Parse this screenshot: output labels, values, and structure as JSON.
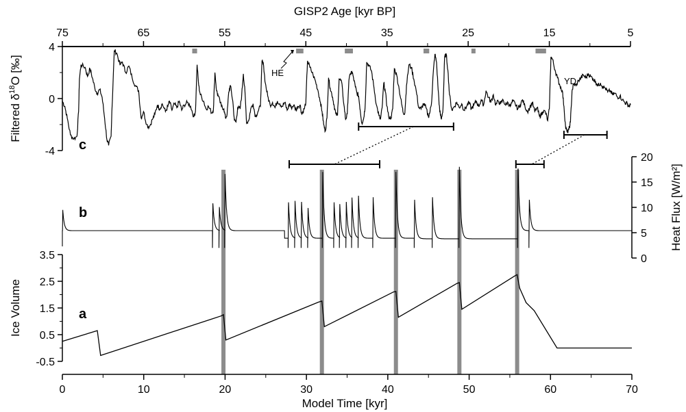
{
  "chart_data": [
    {
      "panel": "c",
      "type": "line",
      "xlabel": "GISP2 Age [kyr BP]",
      "ylabel_prefix": "Filtered δ",
      "ylabel_sup": "18",
      "ylabel_suffix": "O [‰]",
      "x_ticks": [
        "75",
        "65",
        "55",
        "45",
        "35",
        "25",
        "15",
        "5"
      ],
      "y_ticks": [
        "4",
        "0",
        "-4"
      ],
      "xlim": [
        75,
        5
      ],
      "ylim": [
        -4,
        4
      ],
      "annotations": [
        "HE",
        "YD"
      ],
      "heinrich_events_kyr_bp": [
        [
          59.0,
          58.4
        ],
        [
          46.2,
          45.3
        ],
        [
          40.2,
          39.2
        ],
        [
          30.5,
          29.8
        ],
        [
          24.6,
          24.1
        ],
        [
          16.7,
          15.4
        ]
      ],
      "windows_kyr_bp": [
        [
          38.5,
          26.8
        ],
        [
          13.2,
          7.9
        ]
      ],
      "points": [
        [
          75,
          -0.2
        ],
        [
          74.7,
          -0.6
        ],
        [
          74.4,
          -1.5
        ],
        [
          74.0,
          -2.8
        ],
        [
          73.6,
          -3.1
        ],
        [
          73.2,
          -2.9
        ],
        [
          73.0,
          -1.0
        ],
        [
          72.9,
          1.5
        ],
        [
          72.7,
          2.6
        ],
        [
          72.2,
          2.4
        ],
        [
          71.9,
          1.7
        ],
        [
          71.6,
          2.3
        ],
        [
          71.3,
          1.6
        ],
        [
          71.0,
          0.8
        ],
        [
          70.7,
          0.4
        ],
        [
          70.4,
          0.7
        ],
        [
          70.1,
          0.1
        ],
        [
          69.8,
          -1.5
        ],
        [
          69.5,
          -3.2
        ],
        [
          69.3,
          -3.6
        ],
        [
          69.0,
          -2.9
        ],
        [
          68.9,
          -1.0
        ],
        [
          68.6,
          3.7
        ],
        [
          68.3,
          3.5
        ],
        [
          67.9,
          2.6
        ],
        [
          67.6,
          2.8
        ],
        [
          67.2,
          2.0
        ],
        [
          66.8,
          2.5
        ],
        [
          66.4,
          1.6
        ],
        [
          66.0,
          1.0
        ],
        [
          65.6,
          0.6
        ],
        [
          65.3,
          -1.5
        ],
        [
          65.0,
          -1.0
        ],
        [
          64.6,
          -2.0
        ],
        [
          64.3,
          -2.2
        ],
        [
          63.9,
          -1.6
        ],
        [
          63.6,
          -1.2
        ],
        [
          63.3,
          -0.5
        ],
        [
          63.0,
          -0.8
        ],
        [
          62.7,
          -0.4
        ],
        [
          62.3,
          -1.0
        ],
        [
          62.0,
          -0.6
        ],
        [
          61.8,
          -0.2
        ],
        [
          61.5,
          -0.9
        ],
        [
          61.2,
          -0.4
        ],
        [
          60.9,
          -0.7
        ],
        [
          60.6,
          -0.2
        ],
        [
          60.3,
          -0.9
        ],
        [
          60.0,
          -0.5
        ],
        [
          59.6,
          -0.3
        ],
        [
          59.2,
          -0.6
        ],
        [
          58.8,
          -1.4
        ],
        [
          58.6,
          -1.0
        ],
        [
          58.4,
          2.6
        ],
        [
          58.2,
          1.0
        ],
        [
          58.0,
          0.3
        ],
        [
          57.6,
          -0.2
        ],
        [
          57.3,
          -0.8
        ],
        [
          57.0,
          -0.6
        ],
        [
          56.6,
          -1.1
        ],
        [
          56.4,
          -0.9
        ],
        [
          56.2,
          2.0
        ],
        [
          56.0,
          0.6
        ],
        [
          55.8,
          0.2
        ],
        [
          55.4,
          -0.6
        ],
        [
          55.1,
          -0.8
        ],
        [
          54.9,
          -1.5
        ],
        [
          54.7,
          -1.2
        ],
        [
          54.5,
          0.5
        ],
        [
          54.3,
          1.0
        ],
        [
          54.0,
          -0.2
        ],
        [
          53.8,
          -1.7
        ],
        [
          53.6,
          -1.8
        ],
        [
          53.4,
          -0.7
        ],
        [
          53.1,
          -0.8
        ],
        [
          52.9,
          0.3
        ],
        [
          52.7,
          1.9
        ],
        [
          52.5,
          0.5
        ],
        [
          52.3,
          -1.9
        ],
        [
          52.0,
          -1.6
        ],
        [
          51.8,
          -0.8
        ],
        [
          51.5,
          -0.4
        ],
        [
          51.2,
          -1.4
        ],
        [
          50.9,
          -1.0
        ],
        [
          50.6,
          -0.6
        ],
        [
          50.4,
          2.9
        ],
        [
          50.2,
          2.5
        ],
        [
          50.0,
          1.2
        ],
        [
          49.7,
          0.2
        ],
        [
          49.4,
          -0.5
        ],
        [
          49.1,
          -0.3
        ],
        [
          48.8,
          -0.7
        ],
        [
          48.5,
          -0.2
        ],
        [
          48.2,
          -0.4
        ],
        [
          47.9,
          -0.6
        ],
        [
          47.6,
          -0.3
        ],
        [
          47.3,
          -0.9
        ],
        [
          47.0,
          -0.4
        ],
        [
          46.8,
          -0.7
        ],
        [
          46.5,
          -0.5
        ],
        [
          46.2,
          -0.9
        ],
        [
          46.0,
          -0.6
        ],
        [
          45.7,
          -0.5
        ],
        [
          45.5,
          -1.2
        ],
        [
          45.2,
          -0.8
        ],
        [
          45.0,
          -0.3
        ],
        [
          44.8,
          2.9
        ],
        [
          44.5,
          2.4
        ],
        [
          44.1,
          1.8
        ],
        [
          43.8,
          1.3
        ],
        [
          43.5,
          0.6
        ],
        [
          43.2,
          -0.3
        ],
        [
          43.0,
          -1.0
        ],
        [
          42.8,
          -2.0
        ],
        [
          42.6,
          -2.5
        ],
        [
          42.4,
          -1.5
        ],
        [
          42.2,
          1.6
        ],
        [
          42.0,
          0.8
        ],
        [
          41.7,
          0.1
        ],
        [
          41.5,
          -0.6
        ],
        [
          41.3,
          -1.2
        ],
        [
          41.1,
          -1.3
        ],
        [
          40.9,
          1.5
        ],
        [
          40.6,
          1.3
        ],
        [
          40.3,
          -0.5
        ],
        [
          40.1,
          -1.6
        ],
        [
          39.9,
          -1.2
        ],
        [
          39.7,
          1.4
        ],
        [
          39.4,
          2.1
        ],
        [
          39.2,
          1.8
        ],
        [
          38.9,
          0.9
        ],
        [
          38.7,
          0.4
        ],
        [
          38.5,
          0.2
        ],
        [
          38.3,
          -0.9
        ],
        [
          38.1,
          -1.9
        ],
        [
          37.9,
          -1.6
        ],
        [
          37.7,
          -0.7
        ],
        [
          37.5,
          2.8
        ],
        [
          37.2,
          2.5
        ],
        [
          36.9,
          2.1
        ],
        [
          36.6,
          0.8
        ],
        [
          36.3,
          -0.5
        ],
        [
          36.0,
          -1.3
        ],
        [
          35.8,
          -1.6
        ],
        [
          35.6,
          -0.7
        ],
        [
          35.4,
          1.2
        ],
        [
          35.2,
          0.5
        ],
        [
          35.0,
          -0.6
        ],
        [
          34.8,
          -1.4
        ],
        [
          34.5,
          -1.5
        ],
        [
          34.3,
          -0.8
        ],
        [
          34.1,
          2.3
        ],
        [
          33.8,
          1.8
        ],
        [
          33.5,
          0.7
        ],
        [
          33.2,
          -0.4
        ],
        [
          33.0,
          -1.1
        ],
        [
          32.8,
          -1.1
        ],
        [
          32.6,
          1.0
        ],
        [
          32.3,
          2.6
        ],
        [
          32.0,
          2.4
        ],
        [
          31.7,
          1.5
        ],
        [
          31.4,
          0.6
        ],
        [
          31.1,
          -0.7
        ],
        [
          30.8,
          -0.8
        ],
        [
          30.5,
          -0.4
        ],
        [
          30.2,
          -0.7
        ],
        [
          29.9,
          -1.4
        ],
        [
          29.7,
          -1.0
        ],
        [
          29.5,
          -0.2
        ],
        [
          29.3,
          2.0
        ],
        [
          29.1,
          3.4
        ],
        [
          28.9,
          2.8
        ],
        [
          28.7,
          0.7
        ],
        [
          28.5,
          -1.0
        ],
        [
          28.3,
          -1.6
        ],
        [
          28.1,
          -0.8
        ],
        [
          27.9,
          3.2
        ],
        [
          27.7,
          3.4
        ],
        [
          27.5,
          2.2
        ],
        [
          27.3,
          0.3
        ],
        [
          27.0,
          -0.9
        ],
        [
          26.7,
          -0.6
        ],
        [
          26.4,
          -0.3
        ],
        [
          26.1,
          -0.7
        ],
        [
          25.8,
          -0.4
        ],
        [
          25.5,
          -0.9
        ],
        [
          25.2,
          -0.6
        ],
        [
          24.9,
          -0.3
        ],
        [
          24.6,
          -0.8
        ],
        [
          24.3,
          -0.5
        ],
        [
          24.0,
          -0.2
        ],
        [
          23.7,
          -0.6
        ],
        [
          23.4,
          -0.1
        ],
        [
          23.1,
          -0.5
        ],
        [
          22.8,
          0.6
        ],
        [
          22.5,
          0.1
        ],
        [
          22.2,
          -0.3
        ],
        [
          21.9,
          0.3
        ],
        [
          21.6,
          -0.5
        ],
        [
          21.3,
          -0.2
        ],
        [
          21.0,
          -0.4
        ],
        [
          20.7,
          -0.1
        ],
        [
          20.4,
          -0.5
        ],
        [
          20.1,
          -0.3
        ],
        [
          19.8,
          -0.6
        ],
        [
          19.5,
          -0.2
        ],
        [
          19.2,
          -0.4
        ],
        [
          18.9,
          -0.8
        ],
        [
          18.6,
          -0.5
        ],
        [
          18.3,
          -0.1
        ],
        [
          18.0,
          -0.6
        ],
        [
          17.7,
          -1.0
        ],
        [
          17.4,
          -0.7
        ],
        [
          17.1,
          -0.3
        ],
        [
          16.8,
          -1.0
        ],
        [
          16.5,
          -0.7
        ],
        [
          16.2,
          -1.4
        ],
        [
          16.0,
          -1.2
        ],
        [
          15.8,
          -1.0
        ],
        [
          15.5,
          -1.0
        ],
        [
          15.2,
          -1.7
        ],
        [
          15.0,
          -0.8
        ],
        [
          14.8,
          3.2
        ],
        [
          14.6,
          3.0
        ],
        [
          14.3,
          2.2
        ],
        [
          14.0,
          1.6
        ],
        [
          13.7,
          1.0
        ],
        [
          13.4,
          0.6
        ],
        [
          13.2,
          -0.6
        ],
        [
          13.0,
          -2.2
        ],
        [
          12.8,
          -2.6
        ],
        [
          12.6,
          -2.4
        ],
        [
          12.4,
          -1.8
        ],
        [
          12.2,
          0.6
        ],
        [
          12.0,
          1.1
        ],
        [
          11.7,
          1.0
        ],
        [
          11.4,
          1.4
        ],
        [
          11.1,
          1.6
        ],
        [
          10.8,
          1.8
        ],
        [
          10.5,
          1.6
        ],
        [
          10.2,
          1.9
        ],
        [
          9.9,
          1.7
        ],
        [
          9.6,
          1.5
        ],
        [
          9.3,
          1.3
        ],
        [
          9.0,
          1.0
        ],
        [
          8.7,
          1.2
        ],
        [
          8.4,
          0.9
        ],
        [
          8.1,
          0.8
        ],
        [
          7.8,
          0.5
        ],
        [
          7.5,
          0.6
        ],
        [
          7.2,
          0.3
        ],
        [
          6.9,
          0.4
        ],
        [
          6.6,
          0.1
        ],
        [
          6.3,
          0.2
        ],
        [
          6.0,
          -0.1
        ],
        [
          5.7,
          -0.3
        ],
        [
          5.4,
          -0.4
        ],
        [
          5.2,
          -0.6
        ],
        [
          5.0,
          -0.5
        ]
      ]
    },
    {
      "panel": "b",
      "type": "line",
      "ylabel": "Heat Flux [W/m²]",
      "y_ticks": [
        "20",
        "15",
        "10",
        "5",
        "0"
      ],
      "ylim": [
        0,
        20
      ],
      "xlim": [
        0,
        70
      ],
      "base_levels": [
        {
          "x": [
            0,
            18.0
          ],
          "y": 5.4
        },
        {
          "x": [
            18.0,
            27.3
          ],
          "y": 5.4
        },
        {
          "x": [
            27.3,
            43.3
          ],
          "y": 3.9
        },
        {
          "x": [
            43.3,
            56.0
          ],
          "y": 3.8
        },
        {
          "x": [
            56.0,
            70.0
          ],
          "y": 5.4
        }
      ],
      "spikes": [
        {
          "x": 0.05,
          "peak": 9.5
        },
        {
          "x": 18.5,
          "peak": 10.8
        },
        {
          "x": 19.3,
          "peak": 10.0
        },
        {
          "x": 20.0,
          "peak": 16.5
        },
        {
          "x": 27.8,
          "peak": 11.0
        },
        {
          "x": 28.6,
          "peak": 11.2
        },
        {
          "x": 29.4,
          "peak": 11.0
        },
        {
          "x": 30.2,
          "peak": 9.8
        },
        {
          "x": 32.0,
          "peak": 17.0
        },
        {
          "x": 33.4,
          "peak": 11.0
        },
        {
          "x": 34.1,
          "peak": 10.5
        },
        {
          "x": 34.9,
          "peak": 11.0
        },
        {
          "x": 35.6,
          "peak": 11.8
        },
        {
          "x": 36.4,
          "peak": 12.2
        },
        {
          "x": 38.2,
          "peak": 12.0
        },
        {
          "x": 41.0,
          "peak": 17.0
        },
        {
          "x": 43.3,
          "peak": 11.5
        },
        {
          "x": 45.5,
          "peak": 12.0
        },
        {
          "x": 48.8,
          "peak": 18.0
        },
        {
          "x": 56.0,
          "peak": 17.5
        },
        {
          "x": 57.4,
          "peak": 11.5
        }
      ],
      "window_model_kyr": [
        56.0,
        59.2
      ]
    },
    {
      "panel": "a",
      "type": "line",
      "xlabel": "Model Time [kyr]",
      "ylabel": "Ice Volume",
      "y_ticks": [
        "3.5",
        "2.5",
        "1.5",
        "0.5",
        "-0.5"
      ],
      "ylim": [
        -0.5,
        3.5
      ],
      "x_ticks": [
        "0",
        "10",
        "20",
        "30",
        "40",
        "50",
        "60",
        "70"
      ],
      "xlim": [
        0,
        70
      ],
      "heinrich_bars_model_kyr": [
        19.8,
        31.9,
        41.0,
        48.8,
        55.9
      ],
      "points": [
        [
          0,
          0.25
        ],
        [
          4.3,
          0.65
        ],
        [
          4.7,
          -0.28
        ],
        [
          18.5,
          1.1
        ],
        [
          19.5,
          1.2
        ],
        [
          19.8,
          1.25
        ],
        [
          20.1,
          0.3
        ],
        [
          31.5,
          1.72
        ],
        [
          31.9,
          1.76
        ],
        [
          32.2,
          0.8
        ],
        [
          40.7,
          2.1
        ],
        [
          41.0,
          2.12
        ],
        [
          41.3,
          1.15
        ],
        [
          48.5,
          2.42
        ],
        [
          48.8,
          2.45
        ],
        [
          49.1,
          1.45
        ],
        [
          55.6,
          2.7
        ],
        [
          55.9,
          2.75
        ],
        [
          56.2,
          2.25
        ],
        [
          57.0,
          1.7
        ],
        [
          58.0,
          1.4
        ],
        [
          60.8,
          0.0
        ],
        [
          70,
          0.0
        ]
      ]
    }
  ]
}
